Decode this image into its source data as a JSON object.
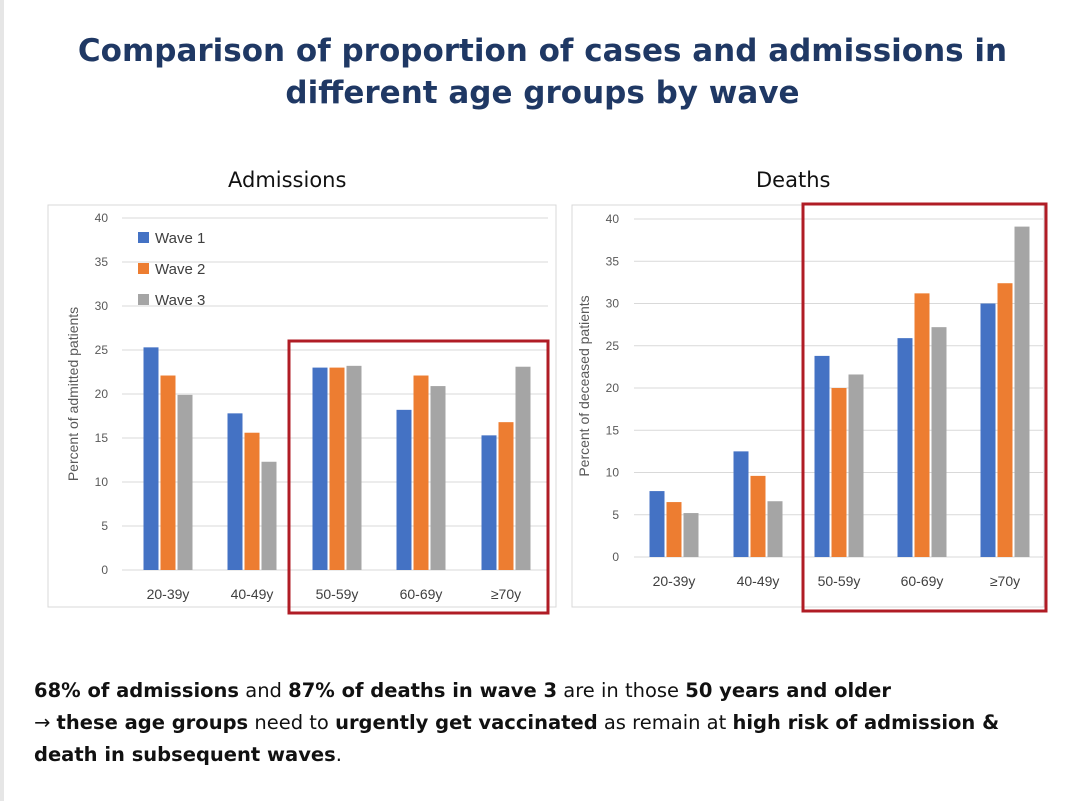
{
  "slide": {
    "title": "Comparison of proportion of cases and admissions in different age groups by wave"
  },
  "colors": {
    "wave1": "#4472c4",
    "wave2": "#ed7d31",
    "wave3": "#a5a5a5",
    "highlight": "#b01c25",
    "title": "#1f3864"
  },
  "chart_data": [
    {
      "type": "bar",
      "title": "Admissions",
      "ylabel": "Percent of admitted patients",
      "categories": [
        "20-39y",
        "40-49y",
        "50-59y",
        "60-69y",
        "≥70y"
      ],
      "yticks": [
        "0",
        "5",
        "10",
        "15",
        "20",
        "25",
        "30",
        "35",
        "40"
      ],
      "ylim": [
        0,
        40
      ],
      "grid": true,
      "legend": "top-left",
      "series": [
        {
          "name": "Wave 1",
          "values": [
            25.3,
            17.8,
            23.0,
            18.2,
            15.3
          ]
        },
        {
          "name": "Wave 2",
          "values": [
            22.1,
            15.6,
            23.0,
            22.1,
            16.8
          ]
        },
        {
          "name": "Wave 3",
          "values": [
            19.9,
            12.3,
            23.2,
            20.9,
            23.1
          ]
        }
      ],
      "highlight_categories": [
        "50-59y",
        "60-69y",
        "≥70y"
      ]
    },
    {
      "type": "bar",
      "title": "Deaths",
      "ylabel": "Percent of deceased patients",
      "categories": [
        "20-39y",
        "40-49y",
        "50-59y",
        "60-69y",
        "≥70y"
      ],
      "yticks": [
        "0",
        "5",
        "10",
        "15",
        "20",
        "25",
        "30",
        "35",
        "40"
      ],
      "ylim": [
        0,
        40
      ],
      "grid": true,
      "series": [
        {
          "name": "Wave 1",
          "values": [
            7.8,
            12.5,
            23.8,
            25.9,
            30.0
          ]
        },
        {
          "name": "Wave 2",
          "values": [
            6.5,
            9.6,
            20.0,
            31.2,
            32.4
          ]
        },
        {
          "name": "Wave 3",
          "values": [
            5.2,
            6.6,
            21.6,
            27.2,
            39.1
          ]
        }
      ],
      "highlight_categories": [
        "50-59y",
        "60-69y",
        "≥70y"
      ]
    }
  ],
  "summary": {
    "line1": [
      {
        "t": "68% of admissions",
        "b": true
      },
      {
        "t": " and ",
        "b": false
      },
      {
        "t": "87% of deaths in wave 3",
        "b": true
      },
      {
        "t": " are in those ",
        "b": false
      },
      {
        "t": "50 years and older",
        "b": true
      }
    ],
    "line2": [
      {
        "t": "→ ",
        "b": false
      },
      {
        "t": "these age groups",
        "b": true
      },
      {
        "t": " need to ",
        "b": false
      },
      {
        "t": "urgently get vaccinated",
        "b": true
      },
      {
        "t": " as remain at ",
        "b": false
      },
      {
        "t": "high risk of admission &",
        "b": true
      }
    ],
    "line3": [
      {
        "t": "death in subsequent waves",
        "b": true
      },
      {
        "t": ".",
        "b": false
      }
    ]
  }
}
